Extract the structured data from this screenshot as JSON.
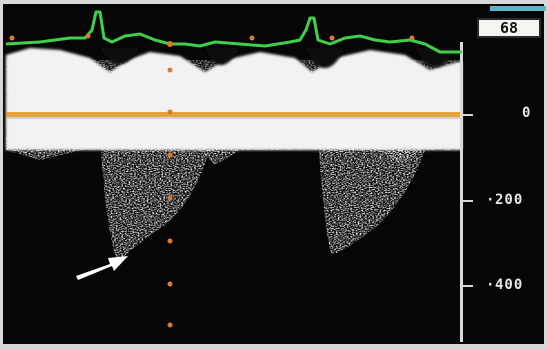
{
  "readout": {
    "value": "68"
  },
  "scale": {
    "labels": [
      {
        "text": "0",
        "velocity": 0
      },
      {
        "text": "200",
        "velocity": 200
      },
      {
        "text": "400",
        "velocity": 400
      }
    ]
  },
  "colors": {
    "background": "#060606",
    "spectrum": "#f2f2f2",
    "ecg_trace": "#3fcf4b",
    "baseline": "#e39a2a",
    "markers": "#e0782f",
    "arrow": "#ffffff",
    "readout_cap": "#5fb3c9"
  },
  "annotations": [
    {
      "type": "arrow",
      "icon": "arrow-icon"
    }
  ]
}
